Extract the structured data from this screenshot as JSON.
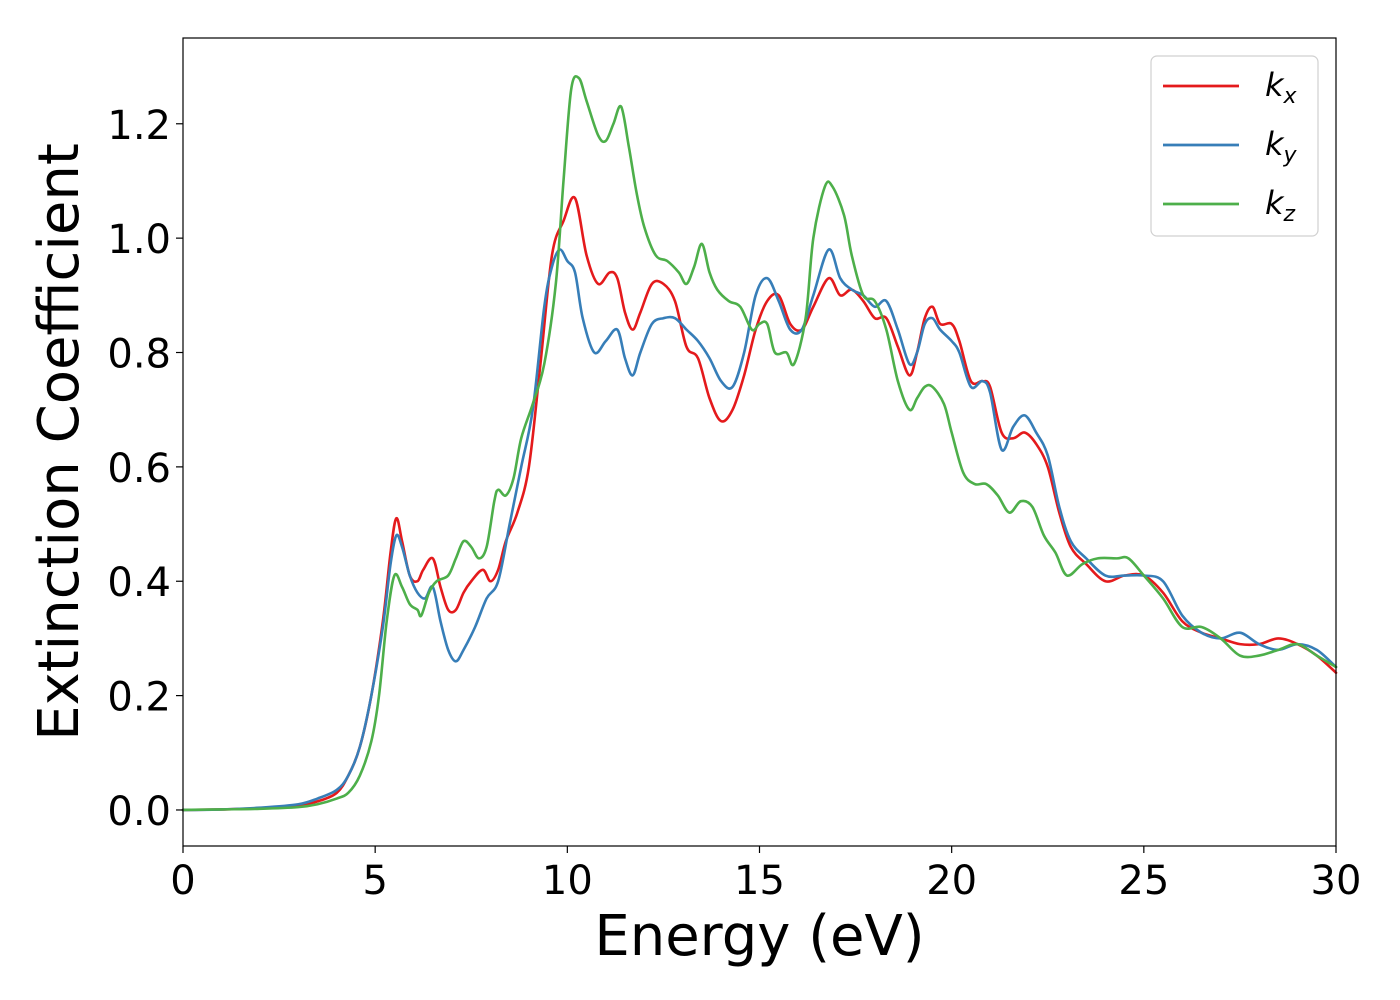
{
  "chart_data": {
    "type": "line",
    "xlabel": "Energy (eV)",
    "ylabel": "Extinction Coefficient",
    "xlim": [
      0,
      30
    ],
    "ylim": [
      -0.063,
      1.35
    ],
    "xticks": [
      0,
      5,
      10,
      15,
      20,
      25,
      30
    ],
    "xtick_labels": [
      "0",
      "5",
      "10",
      "15",
      "20",
      "25",
      "30"
    ],
    "yticks": [
      0.0,
      0.2,
      0.4,
      0.6,
      0.8,
      1.0,
      1.2
    ],
    "ytick_labels": [
      "0.0",
      "0.2",
      "0.4",
      "0.6",
      "0.8",
      "1.0",
      "1.2"
    ],
    "grid": false,
    "legend_position": "top-right",
    "series": [
      {
        "name": "k",
        "subscript": "x",
        "color": "#e41a1c",
        "x": [
          0,
          1,
          2,
          3,
          3.5,
          4,
          4.3,
          4.6,
          4.9,
          5.2,
          5.4,
          5.55,
          5.7,
          5.9,
          6.1,
          6.25,
          6.5,
          6.7,
          6.9,
          7.1,
          7.3,
          7.5,
          7.8,
          8.0,
          8.2,
          8.4,
          8.7,
          9.0,
          9.3,
          9.6,
          9.9,
          10.2,
          10.5,
          10.8,
          11.1,
          11.3,
          11.5,
          11.7,
          11.9,
          12.2,
          12.5,
          12.8,
          13.1,
          13.4,
          13.7,
          14.0,
          14.3,
          14.6,
          14.9,
          15.2,
          15.5,
          15.8,
          16.1,
          16.4,
          16.8,
          17.1,
          17.4,
          17.7,
          18.0,
          18.3,
          18.6,
          18.9,
          19.1,
          19.3,
          19.5,
          19.7,
          20.0,
          20.2,
          20.5,
          20.8,
          21.0,
          21.3,
          21.6,
          21.9,
          22.2,
          22.5,
          22.8,
          23.1,
          23.5,
          24.0,
          24.5,
          25.0,
          25.5,
          26.0,
          26.5,
          27.0,
          27.5,
          28.0,
          28.5,
          29.0,
          29.5,
          30.0
        ],
        "y": [
          0,
          0.001,
          0.003,
          0.008,
          0.015,
          0.03,
          0.06,
          0.11,
          0.2,
          0.33,
          0.45,
          0.51,
          0.47,
          0.41,
          0.4,
          0.42,
          0.44,
          0.39,
          0.35,
          0.35,
          0.38,
          0.4,
          0.42,
          0.4,
          0.42,
          0.47,
          0.52,
          0.6,
          0.78,
          0.97,
          1.03,
          1.07,
          0.97,
          0.92,
          0.94,
          0.93,
          0.87,
          0.84,
          0.87,
          0.92,
          0.92,
          0.89,
          0.81,
          0.79,
          0.72,
          0.68,
          0.7,
          0.76,
          0.84,
          0.89,
          0.9,
          0.85,
          0.84,
          0.88,
          0.93,
          0.9,
          0.91,
          0.89,
          0.86,
          0.86,
          0.81,
          0.76,
          0.8,
          0.86,
          0.88,
          0.85,
          0.85,
          0.82,
          0.75,
          0.75,
          0.74,
          0.66,
          0.65,
          0.66,
          0.64,
          0.6,
          0.52,
          0.46,
          0.43,
          0.4,
          0.41,
          0.41,
          0.38,
          0.33,
          0.31,
          0.3,
          0.29,
          0.29,
          0.3,
          0.29,
          0.27,
          0.24
        ]
      },
      {
        "name": "k",
        "subscript": "y",
        "color": "#377eb8",
        "x": [
          0,
          1,
          2,
          3,
          3.5,
          4,
          4.3,
          4.6,
          4.9,
          5.2,
          5.4,
          5.55,
          5.7,
          5.9,
          6.1,
          6.3,
          6.5,
          6.7,
          6.9,
          7.1,
          7.3,
          7.6,
          7.9,
          8.2,
          8.5,
          8.8,
          9.1,
          9.4,
          9.6,
          9.8,
          10.0,
          10.2,
          10.4,
          10.7,
          11.0,
          11.3,
          11.5,
          11.7,
          11.9,
          12.2,
          12.5,
          12.8,
          13.1,
          13.4,
          13.7,
          14.0,
          14.3,
          14.6,
          14.9,
          15.2,
          15.5,
          15.8,
          16.1,
          16.4,
          16.8,
          17.1,
          17.4,
          17.7,
          18.0,
          18.3,
          18.6,
          18.9,
          19.1,
          19.3,
          19.5,
          19.7,
          20.0,
          20.2,
          20.5,
          20.8,
          21.0,
          21.3,
          21.6,
          21.9,
          22.2,
          22.5,
          22.8,
          23.1,
          23.5,
          24.0,
          24.5,
          25.0,
          25.5,
          26.0,
          26.5,
          27.0,
          27.5,
          28.0,
          28.5,
          29.0,
          29.5,
          30.0
        ],
        "y": [
          0,
          0.001,
          0.004,
          0.01,
          0.02,
          0.035,
          0.06,
          0.11,
          0.2,
          0.32,
          0.43,
          0.48,
          0.46,
          0.41,
          0.38,
          0.37,
          0.39,
          0.33,
          0.28,
          0.26,
          0.28,
          0.32,
          0.37,
          0.4,
          0.5,
          0.6,
          0.7,
          0.88,
          0.95,
          0.98,
          0.96,
          0.94,
          0.86,
          0.8,
          0.82,
          0.84,
          0.79,
          0.76,
          0.8,
          0.85,
          0.86,
          0.86,
          0.84,
          0.82,
          0.79,
          0.75,
          0.74,
          0.8,
          0.9,
          0.93,
          0.89,
          0.84,
          0.84,
          0.9,
          0.98,
          0.93,
          0.91,
          0.9,
          0.88,
          0.89,
          0.84,
          0.78,
          0.8,
          0.85,
          0.86,
          0.84,
          0.82,
          0.8,
          0.74,
          0.75,
          0.73,
          0.63,
          0.67,
          0.69,
          0.66,
          0.62,
          0.53,
          0.47,
          0.44,
          0.41,
          0.41,
          0.41,
          0.4,
          0.34,
          0.31,
          0.3,
          0.31,
          0.29,
          0.28,
          0.29,
          0.28,
          0.25
        ]
      },
      {
        "name": "k",
        "subscript": "z",
        "color": "#4daf4a",
        "x": [
          0,
          1,
          2,
          3,
          3.5,
          4,
          4.3,
          4.6,
          4.9,
          5.1,
          5.3,
          5.5,
          5.7,
          5.9,
          6.1,
          6.2,
          6.4,
          6.6,
          6.9,
          7.1,
          7.3,
          7.5,
          7.7,
          7.9,
          8.1,
          8.2,
          8.4,
          8.6,
          8.8,
          9.1,
          9.4,
          9.7,
          9.9,
          10.1,
          10.3,
          10.5,
          10.8,
          11.0,
          11.2,
          11.4,
          11.6,
          11.8,
          12.0,
          12.3,
          12.6,
          12.9,
          13.1,
          13.3,
          13.5,
          13.7,
          13.9,
          14.2,
          14.5,
          14.8,
          15.0,
          15.2,
          15.4,
          15.7,
          15.9,
          16.2,
          16.4,
          16.7,
          16.9,
          17.2,
          17.4,
          17.7,
          18.0,
          18.3,
          18.6,
          18.9,
          19.1,
          19.3,
          19.5,
          19.8,
          20.0,
          20.3,
          20.6,
          20.9,
          21.2,
          21.5,
          21.8,
          22.1,
          22.4,
          22.7,
          23.0,
          23.4,
          23.8,
          24.3,
          24.6,
          25.0,
          25.5,
          26.0,
          26.5,
          27.0,
          27.5,
          28.0,
          28.5,
          29.0,
          29.5,
          30.0
        ],
        "y": [
          0,
          0.001,
          0.002,
          0.005,
          0.01,
          0.02,
          0.03,
          0.06,
          0.12,
          0.2,
          0.33,
          0.41,
          0.39,
          0.36,
          0.35,
          0.34,
          0.38,
          0.4,
          0.41,
          0.44,
          0.47,
          0.46,
          0.44,
          0.46,
          0.54,
          0.56,
          0.55,
          0.58,
          0.65,
          0.71,
          0.78,
          0.92,
          1.1,
          1.26,
          1.28,
          1.24,
          1.18,
          1.17,
          1.2,
          1.23,
          1.16,
          1.08,
          1.02,
          0.97,
          0.96,
          0.94,
          0.92,
          0.95,
          0.99,
          0.94,
          0.91,
          0.89,
          0.88,
          0.84,
          0.85,
          0.85,
          0.8,
          0.8,
          0.78,
          0.86,
          1.0,
          1.09,
          1.09,
          1.04,
          0.97,
          0.9,
          0.89,
          0.84,
          0.75,
          0.7,
          0.72,
          0.74,
          0.74,
          0.71,
          0.66,
          0.59,
          0.57,
          0.57,
          0.55,
          0.52,
          0.54,
          0.53,
          0.48,
          0.45,
          0.41,
          0.43,
          0.44,
          0.44,
          0.44,
          0.41,
          0.37,
          0.32,
          0.32,
          0.3,
          0.27,
          0.27,
          0.28,
          0.29,
          0.27,
          0.25
        ]
      }
    ]
  }
}
